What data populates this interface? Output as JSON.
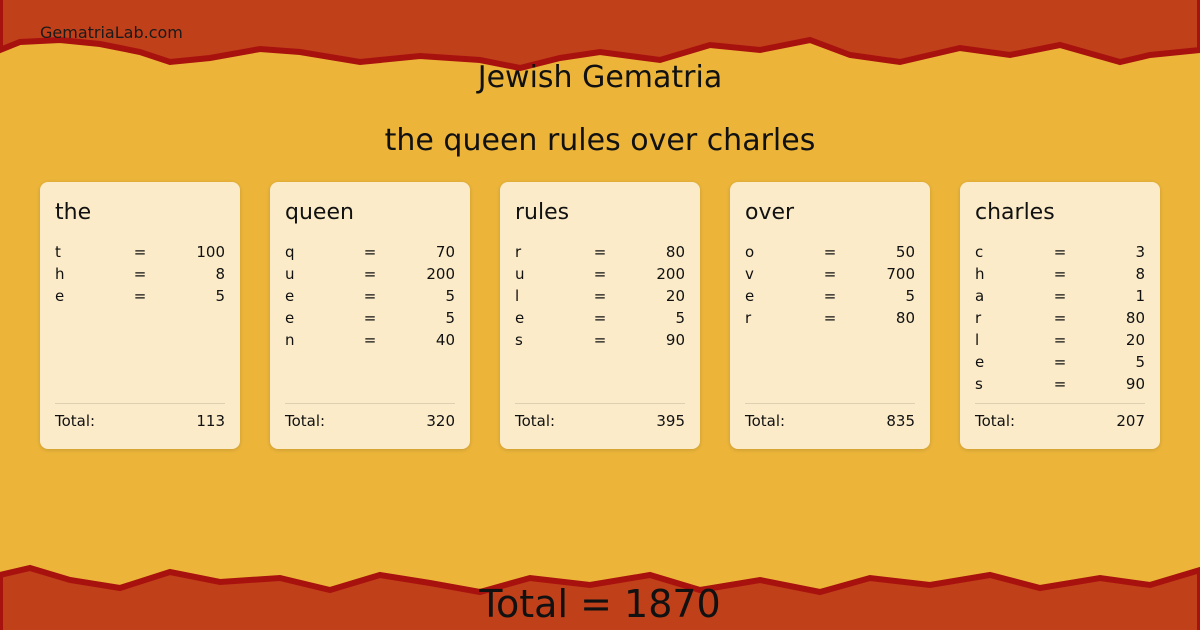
{
  "site": "GematriaLab.com",
  "title": "Jewish Gematria",
  "phrase": "the queen rules over charles",
  "colors": {
    "band": "#c0401a",
    "edge": "#a8120e",
    "paper": "#ecb53a",
    "card": "#fbebc8"
  },
  "total_label": "Total:",
  "words": [
    {
      "word": "the",
      "letters": [
        [
          "t",
          "100"
        ],
        [
          "h",
          "8"
        ],
        [
          "e",
          "5"
        ]
      ],
      "total": "113"
    },
    {
      "word": "queen",
      "letters": [
        [
          "q",
          "70"
        ],
        [
          "u",
          "200"
        ],
        [
          "e",
          "5"
        ],
        [
          "e",
          "5"
        ],
        [
          "n",
          "40"
        ]
      ],
      "total": "320"
    },
    {
      "word": "rules",
      "letters": [
        [
          "r",
          "80"
        ],
        [
          "u",
          "200"
        ],
        [
          "l",
          "20"
        ],
        [
          "e",
          "5"
        ],
        [
          "s",
          "90"
        ]
      ],
      "total": "395"
    },
    {
      "word": "over",
      "letters": [
        [
          "o",
          "50"
        ],
        [
          "v",
          "700"
        ],
        [
          "e",
          "5"
        ],
        [
          "r",
          "80"
        ]
      ],
      "total": "835"
    },
    {
      "word": "charles",
      "letters": [
        [
          "c",
          "3"
        ],
        [
          "h",
          "8"
        ],
        [
          "a",
          "1"
        ],
        [
          "r",
          "80"
        ],
        [
          "l",
          "20"
        ],
        [
          "e",
          "5"
        ],
        [
          "s",
          "90"
        ]
      ],
      "total": "207"
    }
  ],
  "grand_total": "Total = 1870"
}
